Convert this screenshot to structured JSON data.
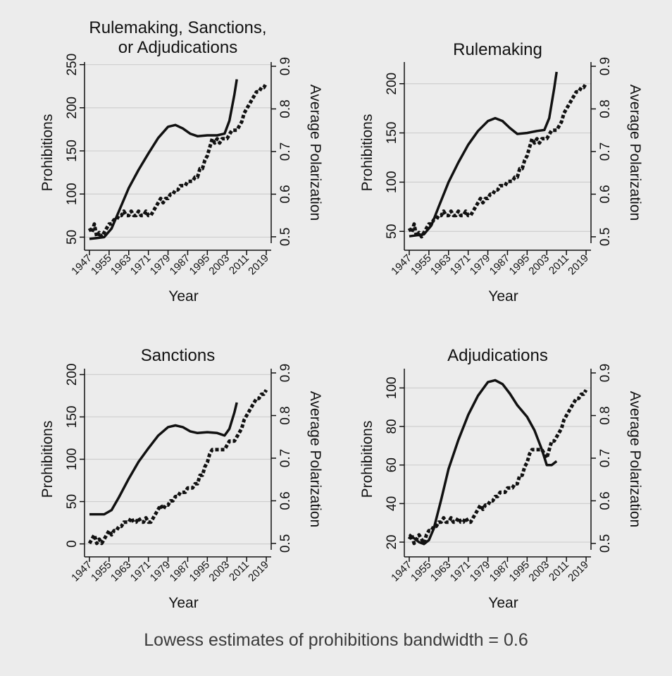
{
  "caption": "Lowess estimates of prohibitions bandwidth = 0.6",
  "chart_data": [
    {
      "type": "line",
      "title": "Rulemaking, Sanctions,\nor Adjudications",
      "xlabel": "Year",
      "ylabel": "Prohibitions",
      "y2label": "Average Polarization",
      "xticks": [
        1947,
        1955,
        1963,
        1971,
        1979,
        1987,
        1995,
        2003,
        2011,
        2019
      ],
      "xlim": [
        1945,
        2021
      ],
      "ylim": [
        43,
        253
      ],
      "yticks": [
        50,
        100,
        150,
        200,
        250
      ],
      "y2lim": [
        0.485,
        0.91
      ],
      "y2ticks": [
        0.5,
        0.6,
        0.7,
        0.8,
        0.9
      ],
      "grid": true,
      "series": [
        {
          "axis": "left",
          "style": "solid",
          "x": [
            1947,
            1950,
            1953,
            1956,
            1959,
            1963,
            1967,
            1971,
            1975,
            1979,
            1982,
            1985,
            1988,
            1991,
            1995,
            1999,
            2002,
            2004,
            2006,
            2007
          ],
          "values": [
            48,
            49,
            50,
            60,
            80,
            107,
            128,
            147,
            165,
            178,
            180,
            176,
            170,
            167,
            168,
            168,
            170,
            185,
            215,
            233
          ]
        },
        {
          "axis": "right",
          "style": "dotted",
          "x": [
            1947,
            1948,
            1949,
            1950,
            1951,
            1952,
            1953,
            1954,
            1955,
            1956,
            1957,
            1958,
            1959,
            1960,
            1961,
            1962,
            1963,
            1964,
            1965,
            1966,
            1967,
            1968,
            1969,
            1970,
            1971,
            1972,
            1973,
            1974,
            1975,
            1976,
            1977,
            1978,
            1979,
            1980,
            1981,
            1982,
            1983,
            1984,
            1985,
            1986,
            1987,
            1988,
            1989,
            1990,
            1991,
            1992,
            1993,
            1994,
            1995,
            1996,
            1997,
            1998,
            1999,
            2000,
            2001,
            2002,
            2003,
            2004,
            2005,
            2006,
            2007,
            2008,
            2009,
            2010,
            2011,
            2012,
            2013,
            2014,
            2015,
            2016,
            2017,
            2018,
            2019
          ],
          "values": [
            0.52,
            0.51,
            0.53,
            0.5,
            0.51,
            0.5,
            0.51,
            0.52,
            0.53,
            0.53,
            0.54,
            0.54,
            0.55,
            0.55,
            0.56,
            0.55,
            0.55,
            0.56,
            0.55,
            0.55,
            0.56,
            0.55,
            0.55,
            0.56,
            0.55,
            0.55,
            0.56,
            0.57,
            0.58,
            0.59,
            0.58,
            0.59,
            0.59,
            0.6,
            0.6,
            0.61,
            0.61,
            0.62,
            0.62,
            0.62,
            0.63,
            0.63,
            0.63,
            0.64,
            0.64,
            0.66,
            0.66,
            0.68,
            0.69,
            0.71,
            0.73,
            0.72,
            0.73,
            0.72,
            0.73,
            0.73,
            0.73,
            0.74,
            0.75,
            0.75,
            0.75,
            0.76,
            0.77,
            0.79,
            0.8,
            0.81,
            0.82,
            0.83,
            0.84,
            0.84,
            0.85,
            0.85,
            0.86
          ]
        }
      ]
    },
    {
      "type": "line",
      "title": "Rulemaking",
      "xlabel": "Year",
      "ylabel": "Prohibitions",
      "y2label": "Average Polarization",
      "xticks": [
        1947,
        1955,
        1963,
        1971,
        1979,
        1987,
        1995,
        2003,
        2011,
        2019
      ],
      "xlim": [
        1945,
        2021
      ],
      "ylim": [
        38,
        222
      ],
      "yticks": [
        50,
        100,
        150,
        200
      ],
      "y2lim": [
        0.485,
        0.91
      ],
      "y2ticks": [
        0.5,
        0.6,
        0.7,
        0.8,
        0.9
      ],
      "grid": true,
      "series": [
        {
          "axis": "left",
          "style": "solid",
          "x": [
            1947,
            1950,
            1953,
            1956,
            1959,
            1963,
            1967,
            1971,
            1975,
            1979,
            1982,
            1985,
            1988,
            1991,
            1995,
            1999,
            2002,
            2004,
            2006,
            2007
          ],
          "values": [
            45,
            46,
            47,
            56,
            75,
            100,
            120,
            138,
            152,
            162,
            165,
            162,
            155,
            149,
            150,
            152,
            153,
            165,
            195,
            212
          ]
        },
        {
          "axis": "right",
          "style": "dotted",
          "x": [
            1947,
            1948,
            1949,
            1950,
            1951,
            1952,
            1953,
            1954,
            1955,
            1956,
            1957,
            1958,
            1959,
            1960,
            1961,
            1962,
            1963,
            1964,
            1965,
            1966,
            1967,
            1968,
            1969,
            1970,
            1971,
            1972,
            1973,
            1974,
            1975,
            1976,
            1977,
            1978,
            1979,
            1980,
            1981,
            1982,
            1983,
            1984,
            1985,
            1986,
            1987,
            1988,
            1989,
            1990,
            1991,
            1992,
            1993,
            1994,
            1995,
            1996,
            1997,
            1998,
            1999,
            2000,
            2001,
            2002,
            2003,
            2004,
            2005,
            2006,
            2007,
            2008,
            2009,
            2010,
            2011,
            2012,
            2013,
            2014,
            2015,
            2016,
            2017,
            2018,
            2019
          ],
          "values": [
            0.52,
            0.51,
            0.53,
            0.5,
            0.51,
            0.5,
            0.51,
            0.52,
            0.53,
            0.53,
            0.54,
            0.54,
            0.55,
            0.55,
            0.56,
            0.55,
            0.55,
            0.56,
            0.55,
            0.55,
            0.56,
            0.55,
            0.55,
            0.56,
            0.55,
            0.55,
            0.56,
            0.57,
            0.58,
            0.59,
            0.58,
            0.59,
            0.59,
            0.6,
            0.6,
            0.61,
            0.61,
            0.62,
            0.62,
            0.62,
            0.63,
            0.63,
            0.63,
            0.64,
            0.64,
            0.66,
            0.66,
            0.68,
            0.69,
            0.71,
            0.73,
            0.72,
            0.73,
            0.72,
            0.73,
            0.73,
            0.73,
            0.74,
            0.75,
            0.75,
            0.75,
            0.76,
            0.77,
            0.79,
            0.8,
            0.81,
            0.82,
            0.83,
            0.84,
            0.84,
            0.85,
            0.85,
            0.86
          ]
        }
      ]
    },
    {
      "type": "line",
      "title": "Sanctions",
      "xlabel": "Year",
      "ylabel": "Prohibitions",
      "y2label": "Average Polarization",
      "xticks": [
        1947,
        1955,
        1963,
        1971,
        1979,
        1987,
        1995,
        2003,
        2011,
        2019
      ],
      "xlim": [
        1945,
        2021
      ],
      "ylim": [
        -7,
        207
      ],
      "yticks": [
        0,
        50,
        100,
        150,
        200
      ],
      "y2lim": [
        0.485,
        0.91
      ],
      "y2ticks": [
        0.5,
        0.6,
        0.7,
        0.8,
        0.9
      ],
      "grid": true,
      "series": [
        {
          "axis": "left",
          "style": "solid",
          "x": [
            1947,
            1950,
            1953,
            1956,
            1959,
            1963,
            1967,
            1971,
            1975,
            1979,
            1982,
            1985,
            1988,
            1991,
            1995,
            1999,
            2002,
            2004,
            2006,
            2007
          ],
          "values": [
            35,
            35,
            35,
            40,
            55,
            77,
            97,
            113,
            128,
            138,
            140,
            138,
            133,
            131,
            132,
            131,
            128,
            136,
            155,
            167
          ]
        },
        {
          "axis": "right",
          "style": "dotted",
          "x": [
            1947,
            1948,
            1949,
            1950,
            1951,
            1952,
            1953,
            1954,
            1955,
            1956,
            1957,
            1958,
            1959,
            1960,
            1961,
            1962,
            1963,
            1964,
            1965,
            1966,
            1967,
            1968,
            1969,
            1970,
            1971,
            1972,
            1973,
            1974,
            1975,
            1976,
            1977,
            1978,
            1979,
            1980,
            1981,
            1982,
            1983,
            1984,
            1985,
            1986,
            1987,
            1988,
            1989,
            1990,
            1991,
            1992,
            1993,
            1994,
            1995,
            1996,
            1997,
            1998,
            1999,
            2000,
            2001,
            2002,
            2003,
            2004,
            2005,
            2006,
            2007,
            2008,
            2009,
            2010,
            2011,
            2012,
            2013,
            2014,
            2015,
            2016,
            2017,
            2018,
            2019
          ],
          "values": [
            0.5,
            0.51,
            0.52,
            0.5,
            0.51,
            0.5,
            0.51,
            0.52,
            0.53,
            0.52,
            0.53,
            0.53,
            0.54,
            0.54,
            0.55,
            0.55,
            0.55,
            0.56,
            0.55,
            0.55,
            0.56,
            0.55,
            0.55,
            0.56,
            0.55,
            0.55,
            0.56,
            0.57,
            0.58,
            0.59,
            0.58,
            0.59,
            0.59,
            0.6,
            0.6,
            0.61,
            0.61,
            0.62,
            0.62,
            0.62,
            0.63,
            0.63,
            0.63,
            0.64,
            0.64,
            0.66,
            0.66,
            0.68,
            0.69,
            0.71,
            0.72,
            0.72,
            0.72,
            0.72,
            0.72,
            0.72,
            0.73,
            0.74,
            0.74,
            0.74,
            0.75,
            0.76,
            0.77,
            0.79,
            0.8,
            0.81,
            0.82,
            0.83,
            0.84,
            0.84,
            0.85,
            0.85,
            0.86
          ]
        }
      ]
    },
    {
      "type": "line",
      "title": "Adjudications",
      "xlabel": "Year",
      "ylabel": "Prohibitions",
      "y2label": "Average Polarization",
      "xticks": [
        1947,
        1955,
        1963,
        1971,
        1979,
        1987,
        1995,
        2003,
        2011,
        2019
      ],
      "xlim": [
        1945,
        2021
      ],
      "ylim": [
        16,
        110
      ],
      "yticks": [
        20,
        40,
        60,
        80,
        100
      ],
      "y2lim": [
        0.485,
        0.91
      ],
      "y2ticks": [
        0.5,
        0.6,
        0.7,
        0.8,
        0.9
      ],
      "grid": true,
      "series": [
        {
          "axis": "left",
          "style": "solid",
          "x": [
            1947,
            1949,
            1951,
            1953,
            1955,
            1957,
            1960,
            1963,
            1967,
            1971,
            1975,
            1979,
            1982,
            1985,
            1988,
            1991,
            1995,
            1998,
            2001,
            2003,
            2005,
            2007
          ],
          "values": [
            24,
            22,
            20,
            19,
            21,
            27,
            42,
            58,
            73,
            86,
            96,
            103,
            104,
            102,
            97,
            91,
            85,
            78,
            68,
            60,
            60,
            62
          ]
        },
        {
          "axis": "right",
          "style": "dotted",
          "x": [
            1947,
            1948,
            1949,
            1950,
            1951,
            1952,
            1953,
            1954,
            1955,
            1956,
            1957,
            1958,
            1959,
            1960,
            1961,
            1962,
            1963,
            1964,
            1965,
            1966,
            1967,
            1968,
            1969,
            1970,
            1971,
            1972,
            1973,
            1974,
            1975,
            1976,
            1977,
            1978,
            1979,
            1980,
            1981,
            1982,
            1983,
            1984,
            1985,
            1986,
            1987,
            1988,
            1989,
            1990,
            1991,
            1992,
            1993,
            1994,
            1995,
            1996,
            1997,
            1998,
            1999,
            2000,
            2001,
            2002,
            2003,
            2004,
            2005,
            2006,
            2007,
            2008,
            2009,
            2010,
            2011,
            2012,
            2013,
            2014,
            2015,
            2016,
            2017,
            2018,
            2019
          ],
          "values": [
            0.51,
            0.52,
            0.5,
            0.51,
            0.52,
            0.51,
            0.5,
            0.52,
            0.53,
            0.53,
            0.54,
            0.54,
            0.55,
            0.55,
            0.56,
            0.55,
            0.55,
            0.56,
            0.55,
            0.55,
            0.56,
            0.55,
            0.55,
            0.56,
            0.55,
            0.55,
            0.56,
            0.57,
            0.58,
            0.59,
            0.58,
            0.59,
            0.59,
            0.6,
            0.6,
            0.61,
            0.61,
            0.62,
            0.62,
            0.62,
            0.63,
            0.63,
            0.63,
            0.64,
            0.64,
            0.66,
            0.66,
            0.68,
            0.69,
            0.71,
            0.72,
            0.72,
            0.72,
            0.72,
            0.72,
            0.71,
            0.7,
            0.72,
            0.74,
            0.74,
            0.75,
            0.76,
            0.77,
            0.79,
            0.8,
            0.81,
            0.82,
            0.83,
            0.84,
            0.84,
            0.85,
            0.85,
            0.86
          ]
        }
      ]
    }
  ]
}
